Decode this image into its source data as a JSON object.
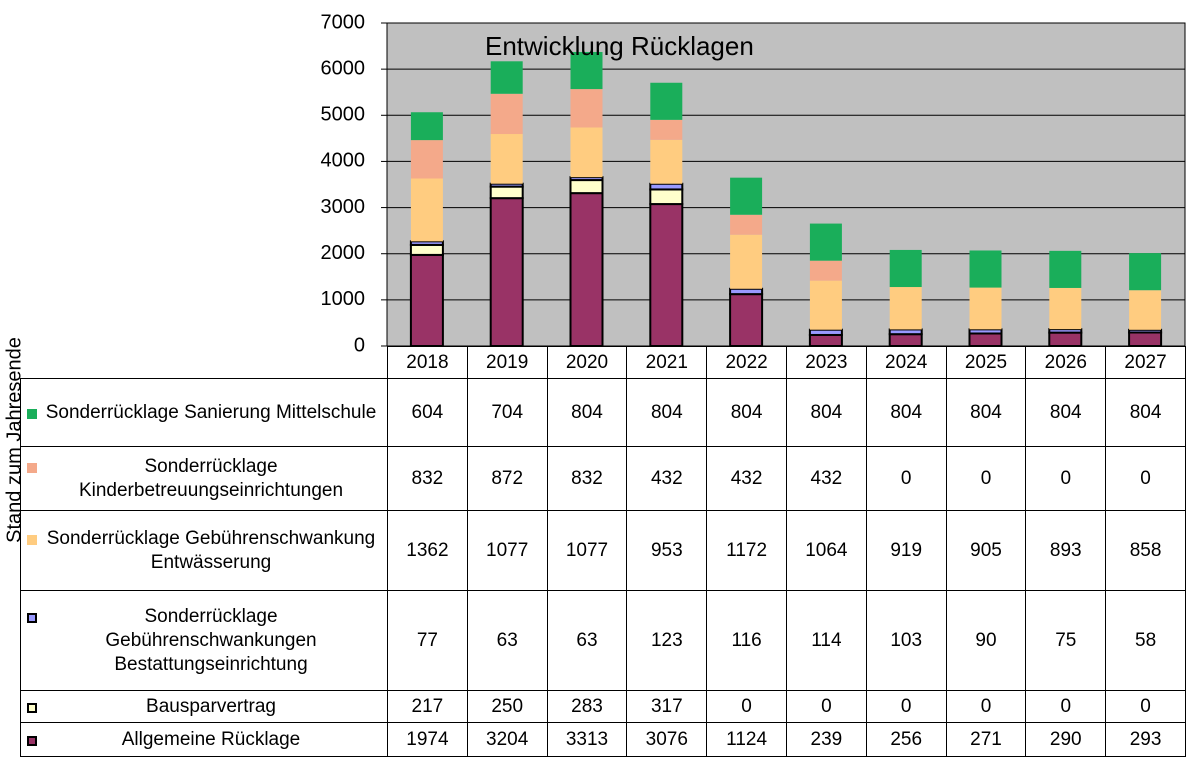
{
  "chart_data": {
    "type": "bar",
    "stacked": true,
    "title": "Entwicklung Rücklagen",
    "ylabel": "Stand zum Jahresende",
    "categories": [
      "2018",
      "2019",
      "2020",
      "2021",
      "2022",
      "2023",
      "2024",
      "2025",
      "2026",
      "2027"
    ],
    "ylim": [
      0,
      7000
    ],
    "yticks": [
      0,
      1000,
      2000,
      3000,
      4000,
      5000,
      6000,
      7000
    ],
    "grid": true,
    "background": "#c0c0c0",
    "series": [
      {
        "name": "Allgemeine Rücklage",
        "color": "#993366",
        "edgecolor": "#000000",
        "values": [
          1974,
          3204,
          3313,
          3076,
          1124,
          239,
          256,
          271,
          290,
          293
        ]
      },
      {
        "name": "Bausparvertrag",
        "color": "#ffffcc",
        "edgecolor": "#000000",
        "values": [
          217,
          250,
          283,
          317,
          0,
          0,
          0,
          0,
          0,
          0
        ]
      },
      {
        "name": "Sonderrücklage Gebührenschwankungen Bestattungseinrichtung",
        "color": "#9999ff",
        "edgecolor": "#000000",
        "values": [
          77,
          63,
          63,
          123,
          116,
          114,
          103,
          90,
          75,
          58
        ]
      },
      {
        "name": "Sonderrücklage Gebührenschwankung Entwässerung",
        "color": "#ffcc80",
        "edgecolor": null,
        "values": [
          1362,
          1077,
          1077,
          953,
          1172,
          1064,
          919,
          905,
          893,
          858
        ]
      },
      {
        "name": "Sonderrücklage Kinderbetreuungseinrichtungen",
        "color": "#f4a98a",
        "edgecolor": null,
        "values": [
          832,
          872,
          832,
          432,
          432,
          432,
          0,
          0,
          0,
          0
        ]
      },
      {
        "name": "Sonderrücklage Sanierung Mittelschule",
        "color": "#1aae5a",
        "edgecolor": null,
        "values": [
          604,
          704,
          804,
          804,
          804,
          804,
          804,
          804,
          804,
          804
        ]
      }
    ]
  }
}
